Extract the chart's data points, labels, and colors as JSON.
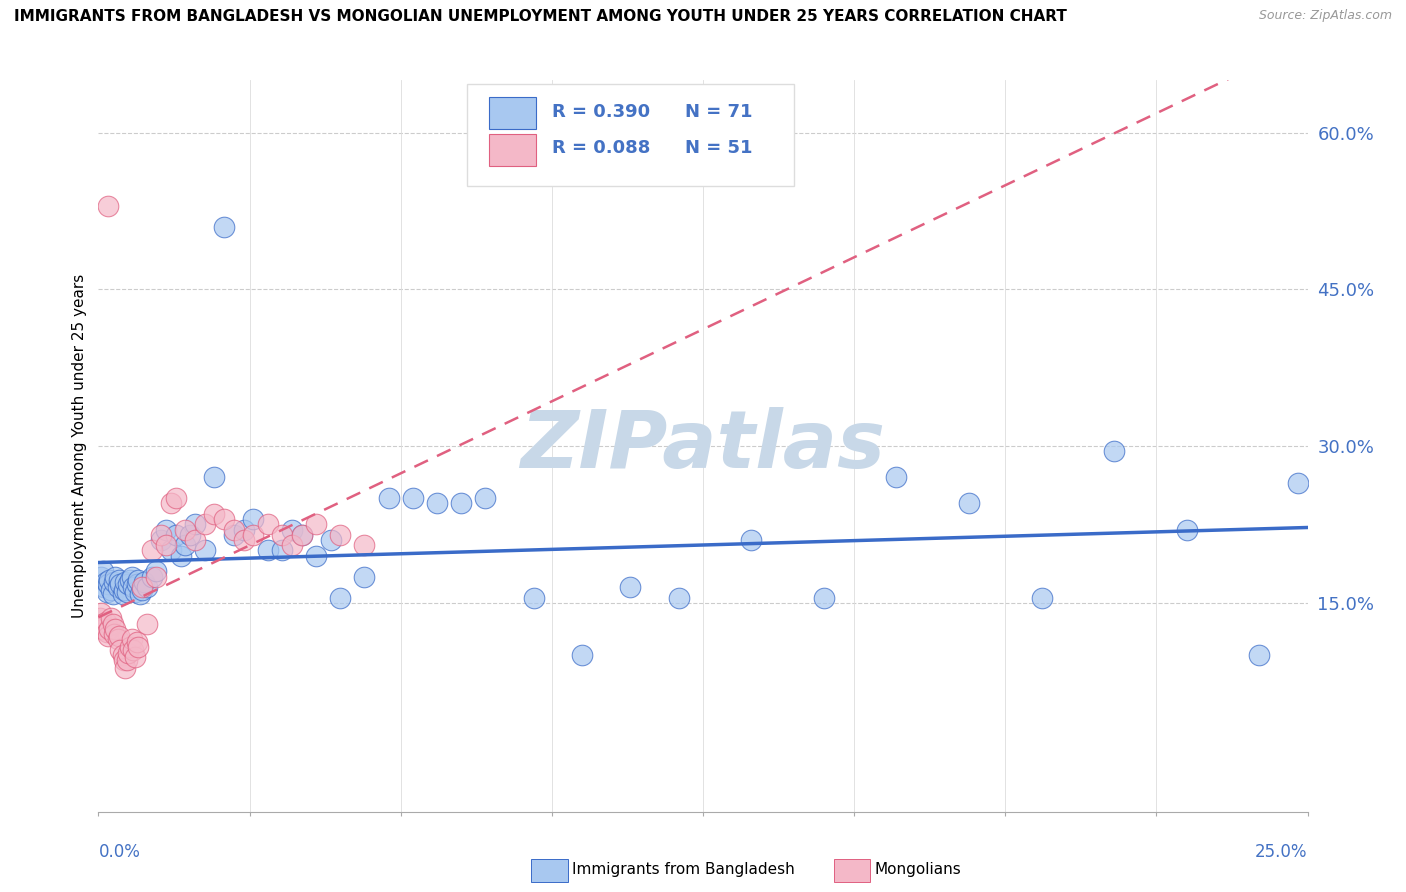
{
  "title": "IMMIGRANTS FROM BANGLADESH VS MONGOLIAN UNEMPLOYMENT AMONG YOUTH UNDER 25 YEARS CORRELATION CHART",
  "source": "Source: ZipAtlas.com",
  "ylabel": "Unemployment Among Youth under 25 years",
  "xlim": [
    0,
    0.25
  ],
  "ylim": [
    -0.05,
    0.65
  ],
  "yticks_right": [
    0.15,
    0.3,
    0.45,
    0.6
  ],
  "ytick_labels_right": [
    "15.0%",
    "30.0%",
    "45.0%",
    "60.0%"
  ],
  "legend_R1": "R = 0.390",
  "legend_N1": "N = 71",
  "legend_R2": "R = 0.088",
  "legend_N2": "N = 51",
  "color_blue": "#A8C8F0",
  "color_pink": "#F4B8C8",
  "color_blue_dark": "#3A6BC8",
  "color_pink_dark": "#E06080",
  "color_blue_text": "#4472C4",
  "watermark": "ZIPatlas",
  "watermark_color": "#C8D8E8",
  "blue_x": [
    0.0005,
    0.001,
    0.0012,
    0.0015,
    0.0018,
    0.002,
    0.0022,
    0.0025,
    0.003,
    0.0032,
    0.0035,
    0.004,
    0.0042,
    0.0045,
    0.005,
    0.0052,
    0.0055,
    0.006,
    0.0062,
    0.0065,
    0.007,
    0.0072,
    0.0075,
    0.008,
    0.0082,
    0.0085,
    0.009,
    0.0095,
    0.01,
    0.011,
    0.012,
    0.013,
    0.014,
    0.015,
    0.016,
    0.017,
    0.018,
    0.019,
    0.02,
    0.022,
    0.024,
    0.026,
    0.028,
    0.03,
    0.032,
    0.035,
    0.038,
    0.04,
    0.042,
    0.045,
    0.048,
    0.05,
    0.055,
    0.06,
    0.065,
    0.07,
    0.075,
    0.08,
    0.09,
    0.1,
    0.11,
    0.12,
    0.135,
    0.15,
    0.165,
    0.18,
    0.195,
    0.21,
    0.225,
    0.24,
    0.248
  ],
  "blue_y": [
    0.175,
    0.18,
    0.165,
    0.17,
    0.16,
    0.168,
    0.172,
    0.162,
    0.158,
    0.17,
    0.175,
    0.165,
    0.172,
    0.168,
    0.158,
    0.162,
    0.17,
    0.16,
    0.168,
    0.172,
    0.175,
    0.165,
    0.16,
    0.168,
    0.172,
    0.158,
    0.162,
    0.17,
    0.165,
    0.175,
    0.18,
    0.21,
    0.22,
    0.2,
    0.215,
    0.195,
    0.205,
    0.215,
    0.225,
    0.2,
    0.27,
    0.51,
    0.215,
    0.22,
    0.23,
    0.2,
    0.2,
    0.22,
    0.215,
    0.195,
    0.21,
    0.155,
    0.175,
    0.25,
    0.25,
    0.245,
    0.245,
    0.25,
    0.155,
    0.1,
    0.165,
    0.155,
    0.21,
    0.155,
    0.27,
    0.245,
    0.155,
    0.295,
    0.22,
    0.1,
    0.265
  ],
  "pink_x": [
    0.0003,
    0.0005,
    0.0007,
    0.001,
    0.0012,
    0.0015,
    0.0018,
    0.002,
    0.0022,
    0.0025,
    0.003,
    0.0032,
    0.0035,
    0.004,
    0.0042,
    0.0045,
    0.005,
    0.0052,
    0.0055,
    0.006,
    0.0062,
    0.0065,
    0.007,
    0.0072,
    0.0075,
    0.008,
    0.0082,
    0.009,
    0.01,
    0.011,
    0.012,
    0.013,
    0.014,
    0.015,
    0.016,
    0.018,
    0.02,
    0.022,
    0.024,
    0.026,
    0.028,
    0.03,
    0.032,
    0.035,
    0.038,
    0.04,
    0.042,
    0.045,
    0.05,
    0.055,
    0.002
  ],
  "pink_y": [
    0.135,
    0.14,
    0.13,
    0.125,
    0.128,
    0.132,
    0.122,
    0.118,
    0.125,
    0.135,
    0.13,
    0.12,
    0.125,
    0.115,
    0.118,
    0.105,
    0.1,
    0.095,
    0.088,
    0.095,
    0.102,
    0.108,
    0.115,
    0.105,
    0.098,
    0.112,
    0.108,
    0.165,
    0.13,
    0.2,
    0.175,
    0.215,
    0.205,
    0.245,
    0.25,
    0.22,
    0.21,
    0.225,
    0.235,
    0.23,
    0.22,
    0.21,
    0.215,
    0.225,
    0.215,
    0.205,
    0.215,
    0.225,
    0.215,
    0.205,
    0.53
  ]
}
